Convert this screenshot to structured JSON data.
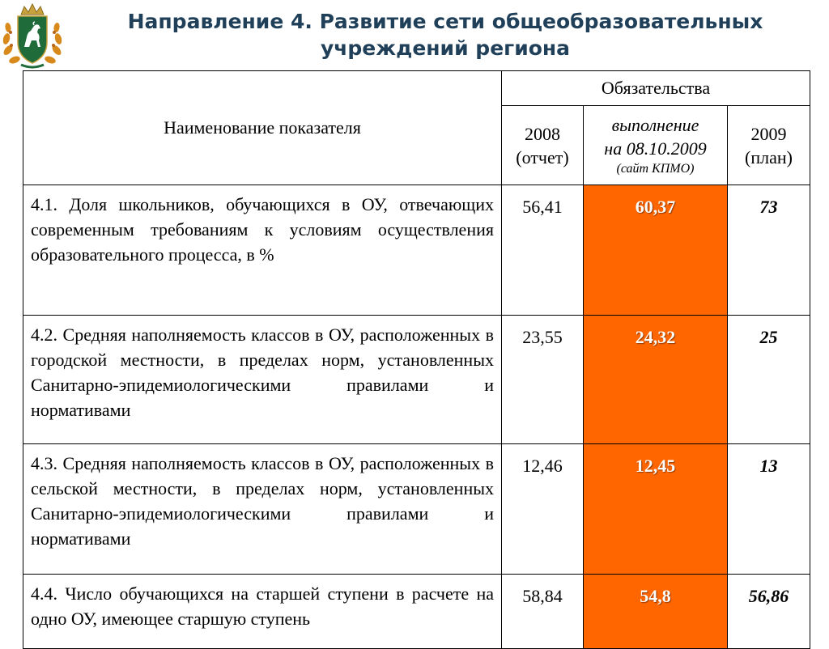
{
  "title": {
    "line1": "Направление 4. Развитие сети общеобразовательных",
    "line2": "учреждений региона"
  },
  "emblem": {
    "icon": "regional-coat-of-arms-icon",
    "colors": {
      "shield": "#1f6b3a",
      "horse": "#ffffff",
      "wreath": "#d8891c",
      "crown": "#c8a23c"
    }
  },
  "table": {
    "header": {
      "name": "Наименование показателя",
      "group": "Обязательства",
      "col2008": {
        "line1": "2008",
        "line2": "(отчет)"
      },
      "colExec": {
        "line1": "выполнение",
        "line2": "на 08.10.2009",
        "line3": "(сайт КПМО)"
      },
      "col2009": {
        "line1": "2009",
        "line2": "(план)"
      }
    },
    "rows": [
      {
        "name": "4.1. Доля школьников, обучающихся в ОУ, отвечающих современным требованиям к условиям осуществления образовательного процесса, в %",
        "v2008": "56,41",
        "exec": "60,37",
        "plan": "73"
      },
      {
        "name": "4.2. Средняя наполняемость классов в ОУ, расположенных в городской местности, в пределах норм, установленных Санитарно-эпидемиологическими правилами и нормативами",
        "v2008": "23,55",
        "exec": "24,32",
        "plan": "25"
      },
      {
        "name": "4.3. Средняя наполняемость классов в ОУ, расположенных в сельской местности, в пределах норм, установленных Санитарно-эпидемиологическими правилами и нормативами",
        "v2008": "12,46",
        "exec": "12,45",
        "plan": "13"
      },
      {
        "name": "4.4. Число обучающихся на старшей ступени в расчете на одно ОУ, имеющее старшую ступень",
        "v2008": "58,84",
        "exec": "54,8",
        "plan": "56,86"
      }
    ]
  },
  "colors": {
    "title": "#20405a",
    "highlight": "#ff6600",
    "highlight_text": "#ffffff"
  }
}
